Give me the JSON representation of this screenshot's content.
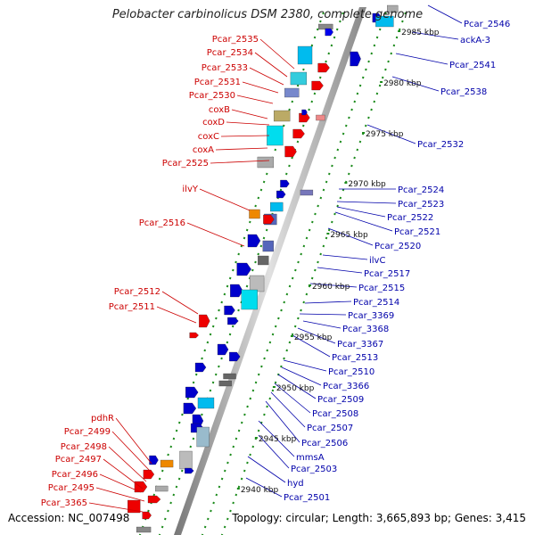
{
  "title": "Pelobacter carbinolicus DSM 2380, complete genome",
  "accession": "Accession: NC_007498",
  "topology": "Topology: circular; Length: 3,665,893 bp; Genes: 3,415",
  "colors": {
    "left_label": "#cc0000",
    "right_label": "#0000aa",
    "tick": "#1a8a1a",
    "backbone": "#999999"
  },
  "kbp_ticks": [
    "2985 kbp",
    "2980 kbp",
    "2975 kbp",
    "2970 kbp",
    "2965 kbp",
    "2960 kbp",
    "2955 kbp",
    "2950 kbp",
    "2945 kbp",
    "2940 kbp"
  ],
  "left_labels": [
    "Pcar_2535",
    "Pcar_2534",
    "Pcar_2533",
    "Pcar_2531",
    "Pcar_2530",
    "coxB",
    "coxD",
    "coxC",
    "coxA",
    "Pcar_2525",
    "ilvY",
    "Pcar_2516",
    "Pcar_2512",
    "Pcar_2511",
    "pdhR",
    "Pcar_2499",
    "Pcar_2498",
    "Pcar_2497",
    "Pcar_2496",
    "Pcar_2495",
    "Pcar_3365"
  ],
  "right_labels": [
    "Pcar_2546",
    "ackA-3",
    "Pcar_2541",
    "Pcar_2538",
    "Pcar_2532",
    "Pcar_2524",
    "Pcar_2523",
    "Pcar_2522",
    "Pcar_2521",
    "Pcar_2520",
    "ilvC",
    "Pcar_2517",
    "Pcar_2515",
    "Pcar_2514",
    "Pcar_3369",
    "Pcar_3368",
    "Pcar_3367",
    "Pcar_2513",
    "Pcar_2510",
    "Pcar_3366",
    "Pcar_2509",
    "Pcar_2508",
    "Pcar_2507",
    "Pcar_2506",
    "mmsA",
    "Pcar_2503",
    "hyd",
    "Pcar_2501"
  ]
}
